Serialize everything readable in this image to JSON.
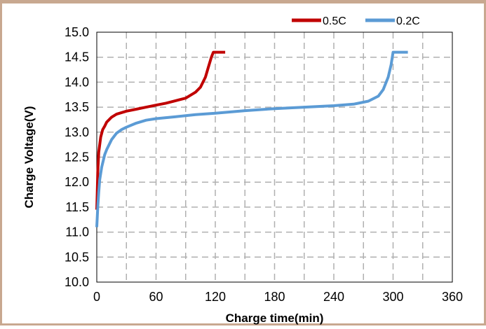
{
  "chart_data": {
    "type": "line",
    "title": "",
    "xlabel": "Charge time(min)",
    "ylabel": "Charge Voltage(V)",
    "xlim": [
      0,
      360
    ],
    "ylim": [
      10.0,
      15.0
    ],
    "x_ticks": [
      "0",
      "60",
      "120",
      "180",
      "240",
      "300",
      "360"
    ],
    "y_ticks": [
      "10.0",
      "10.5",
      "11.0",
      "11.5",
      "12.0",
      "12.5",
      "13.0",
      "13.5",
      "14.0",
      "14.5",
      "15.0"
    ],
    "grid": true,
    "legend_position": "top-right",
    "series": [
      {
        "name": "0.5C",
        "color": "#c00000",
        "x": [
          0,
          0.5,
          1,
          2,
          4,
          6,
          8,
          10,
          15,
          20,
          30,
          40,
          50,
          60,
          70,
          80,
          90,
          100,
          105,
          110,
          113,
          116,
          118,
          120,
          130
        ],
        "y": [
          11.45,
          11.8,
          12.2,
          12.6,
          12.9,
          13.05,
          13.12,
          13.2,
          13.3,
          13.36,
          13.42,
          13.46,
          13.5,
          13.54,
          13.58,
          13.63,
          13.68,
          13.8,
          13.9,
          14.1,
          14.3,
          14.5,
          14.6,
          14.6,
          14.6
        ]
      },
      {
        "name": "0.2C",
        "color": "#5b9bd5",
        "x": [
          0,
          1,
          2,
          3,
          5,
          8,
          10,
          15,
          20,
          25,
          30,
          40,
          50,
          60,
          80,
          100,
          120,
          150,
          180,
          210,
          240,
          260,
          275,
          285,
          290,
          295,
          298,
          300,
          302,
          305,
          315
        ],
        "y": [
          11.1,
          11.5,
          11.8,
          12.05,
          12.3,
          12.55,
          12.65,
          12.85,
          12.98,
          13.05,
          13.1,
          13.18,
          13.24,
          13.27,
          13.31,
          13.35,
          13.38,
          13.43,
          13.47,
          13.5,
          13.53,
          13.56,
          13.62,
          13.72,
          13.85,
          14.1,
          14.35,
          14.6,
          14.6,
          14.6,
          14.6
        ]
      }
    ]
  }
}
